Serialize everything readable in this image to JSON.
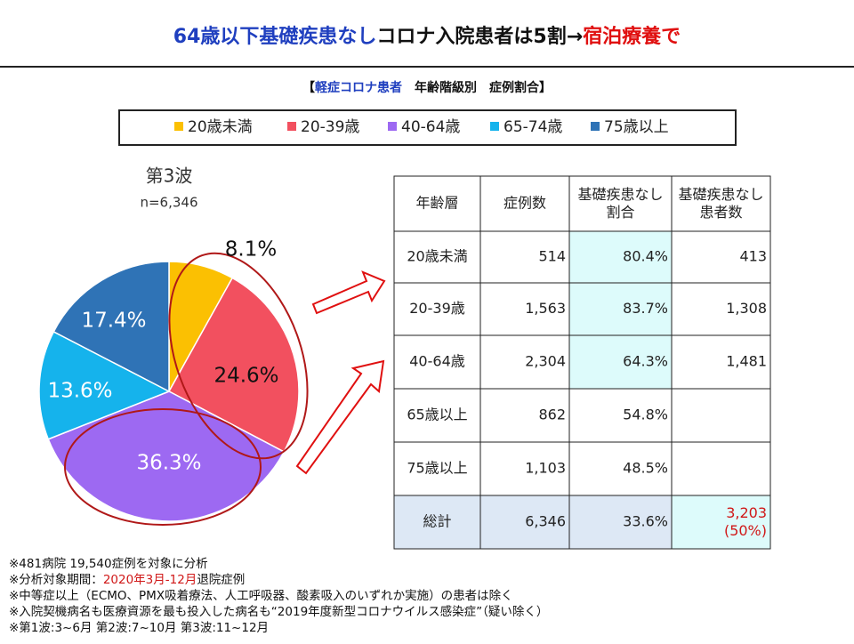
{
  "header": {
    "title": [
      "64歳以下基礎疾患なし",
      "コロナ入院患者は5割→",
      "宿泊療養で"
    ]
  },
  "subtitle": [
    "【",
    "軽症コロナ患者",
    "　年齢階級別　症例割合】"
  ],
  "chart_data": {
    "type": "pie",
    "title": "第3波",
    "subtitle": "n=6,346",
    "categories": [
      "20歳未満",
      "20-39歳",
      "40-64歳",
      "65-74歳",
      "75歳以上"
    ],
    "values": [
      8.1,
      24.6,
      36.3,
      13.6,
      17.4
    ],
    "value_labels": [
      "8.1%",
      "24.6%",
      "36.3%",
      "13.6%",
      "17.4%"
    ],
    "colors": [
      "#fbc002",
      "#f2505f",
      "#9d69f2",
      "#15b3ec",
      "#2f73b6"
    ]
  },
  "table": {
    "header": [
      "年齢層",
      "症例数",
      "基礎疾患なし\n割合",
      "基礎疾患なし\n患者数"
    ],
    "rows": [
      [
        "20歳未満",
        "514",
        "80.4%",
        "413"
      ],
      [
        "20-39歳",
        "1,563",
        "83.7%",
        "1,308"
      ],
      [
        "40-64歳",
        "2,304",
        "64.3%",
        "1,481"
      ],
      [
        "65歳以上",
        "862",
        "54.8%",
        ""
      ],
      [
        "75歳以上",
        "1,103",
        "48.5%",
        ""
      ],
      [
        "総計",
        "6,346",
        "33.6%",
        "3,203\n(50%)"
      ]
    ]
  },
  "notes": [
    [
      "※481病院 19,540症例を対象に分析"
    ],
    [
      "※分析対象期間：",
      "2020年3月-12月",
      "退院症例"
    ],
    [
      "※中等症以上（ECMO、PMX吸着療法、人工呼吸器、酸素吸入のいずれか実施）の患者は除く"
    ],
    [
      "※入院契機病名も医療資源を最も投入した病名も“2019年度新型コロナウイルス感染症”（疑い除く）"
    ],
    [
      "※第1波:3~6月 第2波:7~10月 第3波:11~12月"
    ]
  ]
}
